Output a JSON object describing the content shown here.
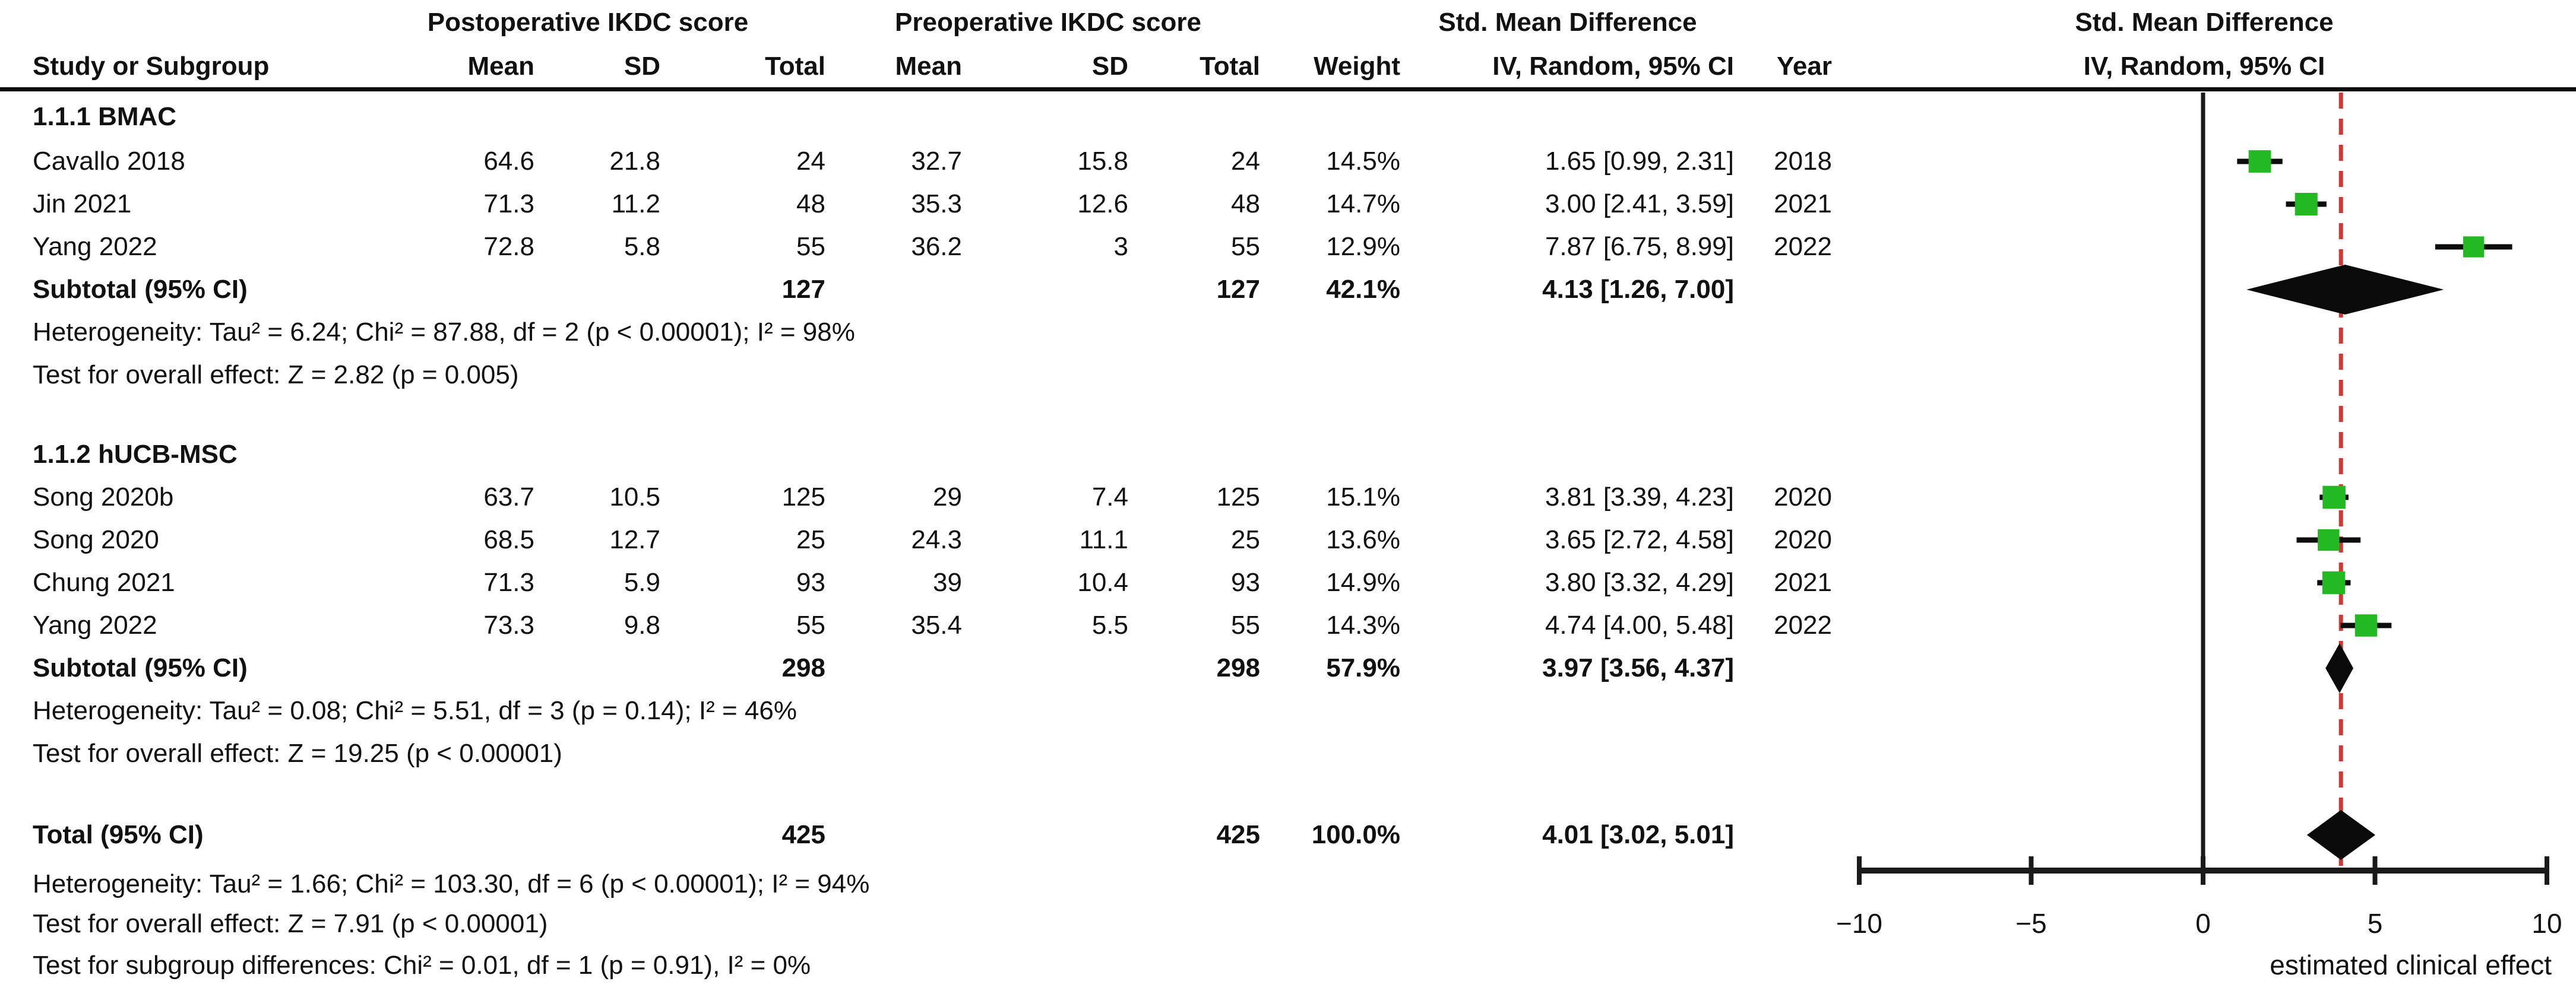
{
  "header": {
    "group_post": "Postoperative IKDC score",
    "group_pre": "Preoperative IKDC score",
    "group_smd": "Std. Mean Difference",
    "plot_title_line1": "Std. Mean Difference",
    "plot_title_line2": "IV, Random, 95% CI",
    "study": "Study or Subgroup",
    "mean_post": "Mean",
    "sd_post": "SD",
    "total_post": "Total",
    "mean_pre": "Mean",
    "sd_pre": "SD",
    "total_pre": "Total",
    "weight": "Weight",
    "iv_random": "IV, Random, 95% CI",
    "year": "Year"
  },
  "groups": [
    {
      "title": "1.1.1 BMAC",
      "studies": [
        {
          "study": "Cavallo 2018",
          "post_mean": "64.6",
          "post_sd": "21.8",
          "post_total": "24",
          "pre_mean": "32.7",
          "pre_sd": "15.8",
          "pre_total": "24",
          "weight": "14.5%",
          "ci_text": "1.65 [0.99, 2.31]",
          "year": "2018",
          "smd": 1.65,
          "lo": 0.99,
          "hi": 2.31,
          "weight_pct": 14.5
        },
        {
          "study": "Jin 2021",
          "post_mean": "71.3",
          "post_sd": "11.2",
          "post_total": "48",
          "pre_mean": "35.3",
          "pre_sd": "12.6",
          "pre_total": "48",
          "weight": "14.7%",
          "ci_text": "3.00 [2.41, 3.59]",
          "year": "2021",
          "smd": 3.0,
          "lo": 2.41,
          "hi": 3.59,
          "weight_pct": 14.7
        },
        {
          "study": "Yang 2022",
          "post_mean": "72.8",
          "post_sd": "5.8",
          "post_total": "55",
          "pre_mean": "36.2",
          "pre_sd": "3",
          "pre_total": "55",
          "weight": "12.9%",
          "ci_text": "7.87 [6.75, 8.99]",
          "year": "2022",
          "smd": 7.87,
          "lo": 6.75,
          "hi": 8.99,
          "weight_pct": 12.9
        }
      ],
      "subtotal": {
        "label": "Subtotal (95% CI)",
        "post_total": "127",
        "pre_total": "127",
        "weight": "42.1%",
        "ci_text": "4.13 [1.26, 7.00]",
        "smd": 4.13,
        "lo": 1.26,
        "hi": 7.0
      },
      "heterogeneity": "Heterogeneity: Tau² = 6.24; Chi² = 87.88, df = 2 (p < 0.00001); I² = 98%",
      "overall_effect": "Test for overall effect: Z = 2.82 (p = 0.005)"
    },
    {
      "title": "1.1.2 hUCB-MSC",
      "studies": [
        {
          "study": "Song 2020b",
          "post_mean": "63.7",
          "post_sd": "10.5",
          "post_total": "125",
          "pre_mean": "29",
          "pre_sd": "7.4",
          "pre_total": "125",
          "weight": "15.1%",
          "ci_text": "3.81 [3.39, 4.23]",
          "year": "2020",
          "smd": 3.81,
          "lo": 3.39,
          "hi": 4.23,
          "weight_pct": 15.1
        },
        {
          "study": "Song 2020",
          "post_mean": "68.5",
          "post_sd": "12.7",
          "post_total": "25",
          "pre_mean": "24.3",
          "pre_sd": "11.1",
          "pre_total": "25",
          "weight": "13.6%",
          "ci_text": "3.65 [2.72, 4.58]",
          "year": "2020",
          "smd": 3.65,
          "lo": 2.72,
          "hi": 4.58,
          "weight_pct": 13.6
        },
        {
          "study": "Chung 2021",
          "post_mean": "71.3",
          "post_sd": "5.9",
          "post_total": "93",
          "pre_mean": "39",
          "pre_sd": "10.4",
          "pre_total": "93",
          "weight": "14.9%",
          "ci_text": "3.80 [3.32, 4.29]",
          "year": "2021",
          "smd": 3.8,
          "lo": 3.32,
          "hi": 4.29,
          "weight_pct": 14.9
        },
        {
          "study": "Yang 2022",
          "post_mean": "73.3",
          "post_sd": "9.8",
          "post_total": "55",
          "pre_mean": "35.4",
          "pre_sd": "5.5",
          "pre_total": "55",
          "weight": "14.3%",
          "ci_text": "4.74 [4.00, 5.48]",
          "year": "2022",
          "smd": 4.74,
          "lo": 4.0,
          "hi": 5.48,
          "weight_pct": 14.3
        }
      ],
      "subtotal": {
        "label": "Subtotal (95% CI)",
        "post_total": "298",
        "pre_total": "298",
        "weight": "57.9%",
        "ci_text": "3.97 [3.56, 4.37]",
        "smd": 3.97,
        "lo": 3.56,
        "hi": 4.37
      },
      "heterogeneity": "Heterogeneity: Tau² = 0.08; Chi² = 5.51, df = 3 (p = 0.14); I² = 46%",
      "overall_effect": "Test for overall effect: Z = 19.25 (p < 0.00001)"
    }
  ],
  "total": {
    "label": "Total (95% CI)",
    "post_total": "425",
    "pre_total": "425",
    "weight": "100.0%",
    "ci_text": "4.01 [3.02, 5.01]",
    "smd": 4.01,
    "lo": 3.02,
    "hi": 5.01
  },
  "footer": {
    "heterogeneity": "Heterogeneity: Tau² = 1.66; Chi² = 103.30, df = 6 (p < 0.00001); I² = 94%",
    "overall_effect": "Test for overall effect: Z = 7.91 (p < 0.00001)",
    "subgroup_diff": "Test for subgroup differences: Chi² = 0.01, df = 1 (p = 0.91), I² = 0%"
  },
  "axis": {
    "tick_values": [
      -10,
      -5,
      0,
      5,
      10
    ],
    "tick_labels": [
      "−10",
      "−5",
      "0",
      "5",
      "10"
    ],
    "label": "estimated clinical effect",
    "ref_line_value": 4.01
  },
  "colors": {
    "marker_green": "#23b923",
    "diamond_black": "#0a0a0a",
    "ref_line_red": "#cc3b33",
    "axis_black": "#1a1a1a"
  },
  "chart_data": {
    "type": "scatter",
    "subtype": "forest-plot",
    "title": "Std. Mean Difference, IV, Random, 95% CI",
    "xlabel": "estimated clinical effect",
    "x_ticks": [
      -10,
      -5,
      0,
      5,
      10
    ],
    "xlim": [
      -10,
      10
    ],
    "reference_lines": [
      {
        "x": 0,
        "style": "solid",
        "color": "#1a1a1a"
      },
      {
        "x": 4.01,
        "style": "dashed",
        "color": "#cc3b33"
      }
    ],
    "series": [
      {
        "name": "1.1.1 BMAC",
        "points": [
          {
            "label": "Cavallo 2018",
            "x": 1.65,
            "ci": [
              0.99,
              2.31
            ],
            "weight_pct": 14.5
          },
          {
            "label": "Jin 2021",
            "x": 3.0,
            "ci": [
              2.41,
              3.59
            ],
            "weight_pct": 14.7
          },
          {
            "label": "Yang 2022",
            "x": 7.87,
            "ci": [
              6.75,
              8.99
            ],
            "weight_pct": 12.9
          }
        ],
        "subtotal_diamond": {
          "x": 4.13,
          "ci": [
            1.26,
            7.0
          ]
        }
      },
      {
        "name": "1.1.2 hUCB-MSC",
        "points": [
          {
            "label": "Song 2020b",
            "x": 3.81,
            "ci": [
              3.39,
              4.23
            ],
            "weight_pct": 15.1
          },
          {
            "label": "Song 2020",
            "x": 3.65,
            "ci": [
              2.72,
              4.58
            ],
            "weight_pct": 13.6
          },
          {
            "label": "Chung 2021",
            "x": 3.8,
            "ci": [
              3.32,
              4.29
            ],
            "weight_pct": 14.9
          },
          {
            "label": "Yang 2022",
            "x": 4.74,
            "ci": [
              4.0,
              5.48
            ],
            "weight_pct": 14.3
          }
        ],
        "subtotal_diamond": {
          "x": 3.97,
          "ci": [
            3.56,
            4.37
          ]
        }
      }
    ],
    "total_diamond": {
      "x": 4.01,
      "ci": [
        3.02,
        5.01
      ]
    }
  }
}
